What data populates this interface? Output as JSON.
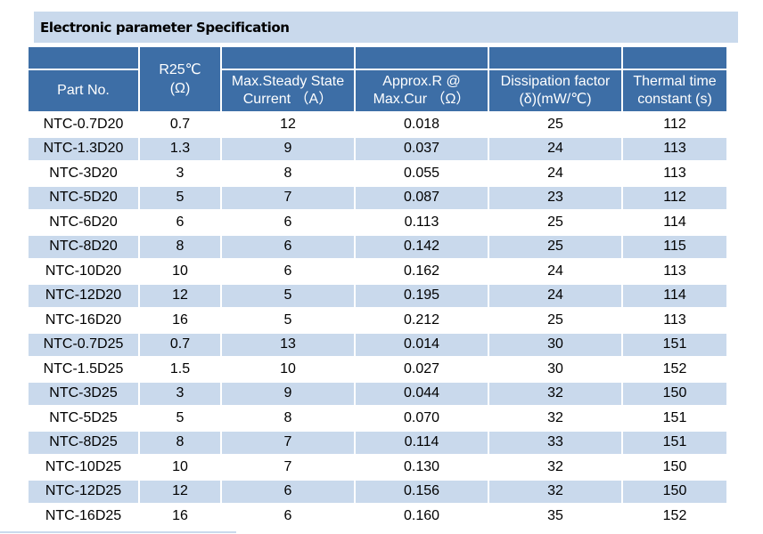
{
  "title": "Electronic parameter Specification",
  "columns": {
    "part_no": "Part No.",
    "r25_line1": "R25℃",
    "r25_line2": "(Ω)",
    "current_line1": "Max.Steady State",
    "current_line2": "Current （A）",
    "approx_line1": "Approx.R @",
    "approx_line2": "Max.Cur （Ω）",
    "dissipation_line1": "Dissipation factor",
    "dissipation_line2": "(δ)(mW/℃)",
    "thermal_line1": "Thermal time",
    "thermal_line2": "constant (s)"
  },
  "rows": [
    [
      "NTC-0.7D20",
      "0.7",
      "12",
      "0.018",
      "25",
      "112"
    ],
    [
      "NTC-1.3D20",
      "1.3",
      "9",
      "0.037",
      "24",
      "113"
    ],
    [
      "NTC-3D20",
      "3",
      "8",
      "0.055",
      "24",
      "113"
    ],
    [
      "NTC-5D20",
      "5",
      "7",
      "0.087",
      "23",
      "112"
    ],
    [
      "NTC-6D20",
      "6",
      "6",
      "0.113",
      "25",
      "114"
    ],
    [
      "NTC-8D20",
      "8",
      "6",
      "0.142",
      "25",
      "115"
    ],
    [
      "NTC-10D20",
      "10",
      "6",
      "0.162",
      "24",
      "113"
    ],
    [
      "NTC-12D20",
      "12",
      "5",
      "0.195",
      "24",
      "114"
    ],
    [
      "NTC-16D20",
      "16",
      "5",
      "0.212",
      "25",
      "113"
    ],
    [
      "NTC-0.7D25",
      "0.7",
      "13",
      "0.014",
      "30",
      "151"
    ],
    [
      "NTC-1.5D25",
      "1.5",
      "10",
      "0.027",
      "30",
      "152"
    ],
    [
      "NTC-3D25",
      "3",
      "9",
      "0.044",
      "32",
      "150"
    ],
    [
      "NTC-5D25",
      "5",
      "8",
      "0.070",
      "32",
      "151"
    ],
    [
      "NTC-8D25",
      "8",
      "7",
      "0.114",
      "33",
      "151"
    ],
    [
      "NTC-10D25",
      "10",
      "7",
      "0.130",
      "32",
      "150"
    ],
    [
      "NTC-12D25",
      "12",
      "6",
      "0.156",
      "32",
      "150"
    ],
    [
      "NTC-16D25",
      "16",
      "6",
      "0.160",
      "35",
      "152"
    ]
  ],
  "colors": {
    "header_blue": "#3d6ea6",
    "stripe_light_blue": "#c9d9ec",
    "header_text": "#ffffff"
  }
}
